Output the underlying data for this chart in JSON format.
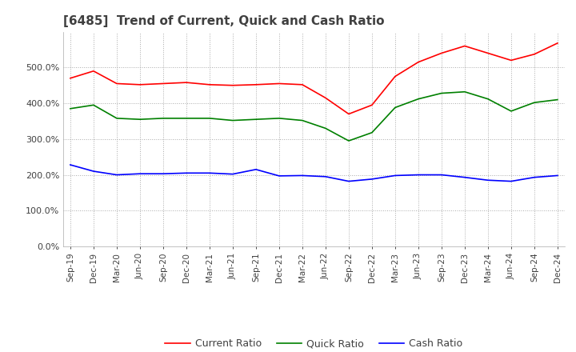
{
  "title": "[6485]  Trend of Current, Quick and Cash Ratio",
  "x_labels": [
    "Sep-19",
    "Dec-19",
    "Mar-20",
    "Jun-20",
    "Sep-20",
    "Dec-20",
    "Mar-21",
    "Jun-21",
    "Sep-21",
    "Dec-21",
    "Mar-22",
    "Jun-22",
    "Sep-22",
    "Dec-22",
    "Mar-23",
    "Jun-23",
    "Sep-23",
    "Dec-23",
    "Mar-24",
    "Jun-24",
    "Sep-24",
    "Dec-24"
  ],
  "current_ratio": [
    470,
    490,
    455,
    452,
    455,
    458,
    452,
    450,
    452,
    455,
    452,
    415,
    370,
    395,
    475,
    515,
    540,
    560,
    540,
    520,
    537,
    568
  ],
  "quick_ratio": [
    385,
    395,
    358,
    355,
    358,
    358,
    358,
    352,
    355,
    358,
    352,
    330,
    295,
    318,
    388,
    412,
    428,
    432,
    412,
    378,
    402,
    410
  ],
  "cash_ratio": [
    228,
    210,
    200,
    203,
    203,
    205,
    205,
    202,
    215,
    197,
    198,
    195,
    182,
    188,
    198,
    200,
    200,
    193,
    185,
    182,
    193,
    198
  ],
  "ylim": [
    0,
    600
  ],
  "yticks": [
    0,
    100,
    200,
    300,
    400,
    500
  ],
  "current_color": "#FF0000",
  "quick_color": "#008000",
  "cash_color": "#0000FF",
  "background_color": "#FFFFFF",
  "grid_color": "#AAAAAA",
  "title_color": "#404040",
  "linewidth": 1.2
}
